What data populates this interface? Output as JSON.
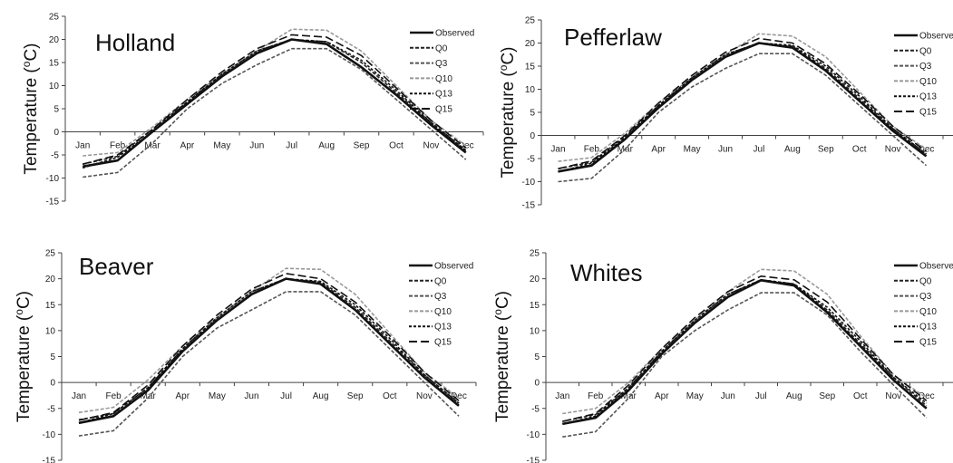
{
  "chart_data": [
    {
      "type": "line",
      "title": "Holland",
      "ylabel": "Temperature (ºC)",
      "ylabel_parts": {
        "pre": "Temperature (",
        "sup": "o",
        "post": "C)"
      },
      "ylim": [
        -15,
        25
      ],
      "yticks": [
        -15,
        -10,
        -5,
        0,
        5,
        10,
        15,
        20,
        25
      ],
      "categories": [
        "Jan",
        "Feb",
        "Mar",
        "Apr",
        "May",
        "Jun",
        "Jul",
        "Aug",
        "Sep",
        "Oct",
        "Nov",
        "Dec"
      ],
      "legend_position": "top-right",
      "grid": false,
      "series": [
        {
          "name": "Observed",
          "values": [
            -7.5,
            -6.2,
            0.0,
            6.0,
            12.0,
            17.0,
            20.0,
            19.0,
            14.0,
            8.0,
            1.5,
            -4.5
          ]
        },
        {
          "name": "Q0",
          "values": [
            -7.0,
            -5.3,
            0.5,
            6.5,
            12.5,
            17.5,
            20.0,
            19.5,
            15.0,
            8.5,
            2.0,
            -4.0
          ]
        },
        {
          "name": "Q3",
          "values": [
            -9.8,
            -8.8,
            -2.5,
            5.0,
            10.5,
            14.5,
            18.0,
            18.0,
            13.5,
            7.0,
            0.5,
            -6.0
          ]
        },
        {
          "name": "Q10",
          "values": [
            -5.2,
            -4.5,
            1.0,
            7.0,
            12.5,
            17.5,
            22.2,
            22.0,
            17.5,
            10.0,
            2.5,
            -3.0
          ]
        },
        {
          "name": "Q13",
          "values": [
            -7.8,
            -5.5,
            0.0,
            6.5,
            12.5,
            17.5,
            20.0,
            19.5,
            15.5,
            9.0,
            2.0,
            -4.0
          ]
        },
        {
          "name": "Q15",
          "values": [
            -7.0,
            -5.0,
            0.5,
            7.0,
            13.0,
            18.0,
            21.0,
            20.5,
            16.5,
            9.5,
            2.5,
            -3.5
          ]
        }
      ]
    },
    {
      "type": "line",
      "title": "Pefferlaw",
      "ylabel": "Temperature (ºC)",
      "ylabel_parts": {
        "pre": "Temperature (",
        "sup": "o",
        "post": "C)"
      },
      "ylim": [
        -15,
        25
      ],
      "yticks": [
        -15,
        -10,
        -5,
        0,
        5,
        10,
        15,
        20,
        25
      ],
      "categories": [
        "Jan",
        "Feb",
        "Mar",
        "Apr",
        "May",
        "Jun",
        "Jul",
        "Aug",
        "Sep",
        "Oct",
        "Nov",
        "Dec"
      ],
      "legend_position": "top-right",
      "grid": false,
      "series": [
        {
          "name": "Observed",
          "values": [
            -7.8,
            -6.5,
            -0.8,
            6.0,
            12.0,
            17.0,
            20.0,
            19.0,
            14.0,
            7.5,
            1.0,
            -4.5
          ]
        },
        {
          "name": "Q0",
          "values": [
            -7.2,
            -5.8,
            -0.2,
            6.5,
            12.5,
            17.5,
            20.0,
            19.3,
            14.5,
            8.0,
            1.5,
            -4.0
          ]
        },
        {
          "name": "Q3",
          "values": [
            -10.0,
            -9.3,
            -3.0,
            5.0,
            10.5,
            14.5,
            17.7,
            17.7,
            13.0,
            6.5,
            0.0,
            -6.5
          ]
        },
        {
          "name": "Q10",
          "values": [
            -5.6,
            -4.8,
            0.5,
            7.0,
            12.5,
            17.5,
            22.0,
            21.5,
            17.0,
            9.5,
            2.0,
            -3.0
          ]
        },
        {
          "name": "Q13",
          "values": [
            -7.9,
            -6.0,
            -0.5,
            6.5,
            12.5,
            17.5,
            20.0,
            19.5,
            15.0,
            8.5,
            1.5,
            -4.0
          ]
        },
        {
          "name": "Q15",
          "values": [
            -7.2,
            -5.5,
            0.0,
            7.0,
            13.0,
            18.0,
            21.0,
            20.0,
            15.5,
            9.0,
            2.0,
            -3.5
          ]
        }
      ]
    },
    {
      "type": "line",
      "title": "Beaver",
      "ylabel": "Temperature (ºC)",
      "ylabel_parts": {
        "pre": "Temperature (",
        "sup": "o",
        "post": "C)"
      },
      "ylim": [
        -15,
        25
      ],
      "yticks": [
        -15,
        -10,
        -5,
        0,
        5,
        10,
        15,
        20,
        25
      ],
      "categories": [
        "Jan",
        "Feb",
        "Mar",
        "Apr",
        "May",
        "Jun",
        "Jul",
        "Aug",
        "Sep",
        "Oct",
        "Nov",
        "Dec"
      ],
      "legend_position": "top-right",
      "grid": false,
      "series": [
        {
          "name": "Observed",
          "values": [
            -7.8,
            -6.5,
            -1.5,
            6.0,
            12.0,
            17.0,
            20.0,
            19.0,
            14.0,
            7.5,
            1.0,
            -4.5
          ]
        },
        {
          "name": "Q0",
          "values": [
            -7.2,
            -6.0,
            -1.0,
            6.5,
            12.5,
            17.5,
            20.0,
            19.3,
            14.5,
            8.0,
            1.5,
            -4.0
          ]
        },
        {
          "name": "Q3",
          "values": [
            -10.3,
            -9.3,
            -3.0,
            5.0,
            10.5,
            14.0,
            17.5,
            17.5,
            13.0,
            6.5,
            0.0,
            -6.5
          ]
        },
        {
          "name": "Q10",
          "values": [
            -5.8,
            -4.8,
            0.5,
            7.0,
            12.5,
            17.5,
            22.0,
            21.8,
            17.0,
            9.5,
            2.0,
            -3.0
          ]
        },
        {
          "name": "Q13",
          "values": [
            -7.8,
            -6.0,
            -1.0,
            6.5,
            12.5,
            17.5,
            20.0,
            19.5,
            15.0,
            8.5,
            1.5,
            -4.0
          ]
        },
        {
          "name": "Q15",
          "values": [
            -7.3,
            -5.8,
            -0.5,
            7.0,
            13.0,
            18.0,
            21.0,
            20.0,
            15.5,
            9.0,
            2.0,
            -3.5
          ]
        }
      ]
    },
    {
      "type": "line",
      "title": "Whites",
      "ylabel": "Temperature (ºC)",
      "ylabel_parts": {
        "pre": "Temperature (",
        "sup": "o",
        "post": "C)"
      },
      "ylim": [
        -15,
        25
      ],
      "yticks": [
        -15,
        -10,
        -5,
        0,
        5,
        10,
        15,
        20,
        25
      ],
      "categories": [
        "Jan",
        "Feb",
        "Mar",
        "Apr",
        "May",
        "Jun",
        "Jul",
        "Aug",
        "Sep",
        "Oct",
        "Nov",
        "Dec"
      ],
      "legend_position": "top-right",
      "grid": false,
      "series": [
        {
          "name": "Observed",
          "values": [
            -8.0,
            -6.8,
            -1.5,
            5.5,
            11.5,
            16.5,
            19.7,
            18.7,
            13.5,
            7.0,
            0.5,
            -5.0
          ]
        },
        {
          "name": "Q0",
          "values": [
            -7.5,
            -6.2,
            -1.0,
            6.0,
            12.0,
            17.0,
            19.8,
            19.0,
            14.0,
            7.5,
            1.0,
            -4.5
          ]
        },
        {
          "name": "Q3",
          "values": [
            -10.5,
            -9.5,
            -3.0,
            5.0,
            10.0,
            14.0,
            17.3,
            17.3,
            13.0,
            6.0,
            -0.5,
            -6.8
          ]
        },
        {
          "name": "Q10",
          "values": [
            -6.0,
            -5.0,
            0.0,
            6.5,
            12.0,
            17.5,
            21.8,
            21.5,
            17.0,
            9.0,
            1.5,
            -3.0
          ]
        },
        {
          "name": "Q13",
          "values": [
            -8.0,
            -6.5,
            -1.0,
            6.0,
            12.0,
            17.0,
            19.8,
            19.0,
            14.5,
            8.0,
            1.0,
            -4.0
          ]
        },
        {
          "name": "Q15",
          "values": [
            -7.5,
            -6.0,
            -0.5,
            6.5,
            12.5,
            17.5,
            20.5,
            19.8,
            15.5,
            8.5,
            1.5,
            -3.5
          ]
        }
      ]
    }
  ],
  "series_styles": {
    "Observed": {
      "color": "#111111",
      "dash": "none"
    },
    "Q0": {
      "color": "#222222",
      "dash": "4,2"
    },
    "Q3": {
      "color": "#555555",
      "dash": "4,2"
    },
    "Q10": {
      "color": "#999999",
      "dash": "4,2"
    },
    "Q13": {
      "color": "#111111",
      "dash": "3,2"
    },
    "Q15": {
      "color": "#111111",
      "dash": "9,4"
    }
  }
}
